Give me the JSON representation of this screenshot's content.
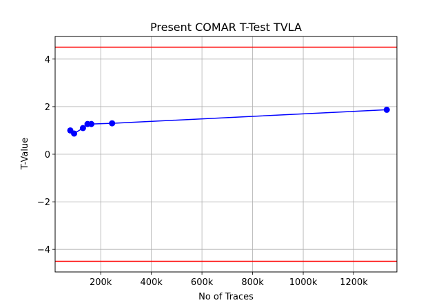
{
  "chart_data": {
    "type": "line",
    "title": "Present COMAR T-Test TVLA",
    "xlabel": "No of Traces",
    "ylabel": "T-Value",
    "xlim": [
      20000,
      1370000
    ],
    "ylim": [
      -4.95,
      4.95
    ],
    "grid": true,
    "x_ticks": [
      {
        "value": 200000,
        "label": "200k"
      },
      {
        "value": 400000,
        "label": "400k"
      },
      {
        "value": 600000,
        "label": "600k"
      },
      {
        "value": 800000,
        "label": "800k"
      },
      {
        "value": 1000000,
        "label": "1000k"
      },
      {
        "value": 1200000,
        "label": "1200k"
      }
    ],
    "y_ticks": [
      {
        "value": 4,
        "label": "4"
      },
      {
        "value": 2,
        "label": "2"
      },
      {
        "value": 0,
        "label": "0"
      },
      {
        "value": -2,
        "label": "−2"
      },
      {
        "value": -4,
        "label": "−4"
      }
    ],
    "series": [
      {
        "color": "#0000ff",
        "marker": "circle",
        "points": [
          {
            "x": 80000,
            "y": 1.0
          },
          {
            "x": 95000,
            "y": 0.87
          },
          {
            "x": 130000,
            "y": 1.1
          },
          {
            "x": 148000,
            "y": 1.27
          },
          {
            "x": 163000,
            "y": 1.27
          },
          {
            "x": 245000,
            "y": 1.3
          },
          {
            "x": 1330000,
            "y": 1.87
          }
        ]
      }
    ],
    "threshold_lines": [
      {
        "y": 4.5,
        "color": "#ff0000"
      },
      {
        "y": -4.5,
        "color": "#ff0000"
      }
    ]
  }
}
